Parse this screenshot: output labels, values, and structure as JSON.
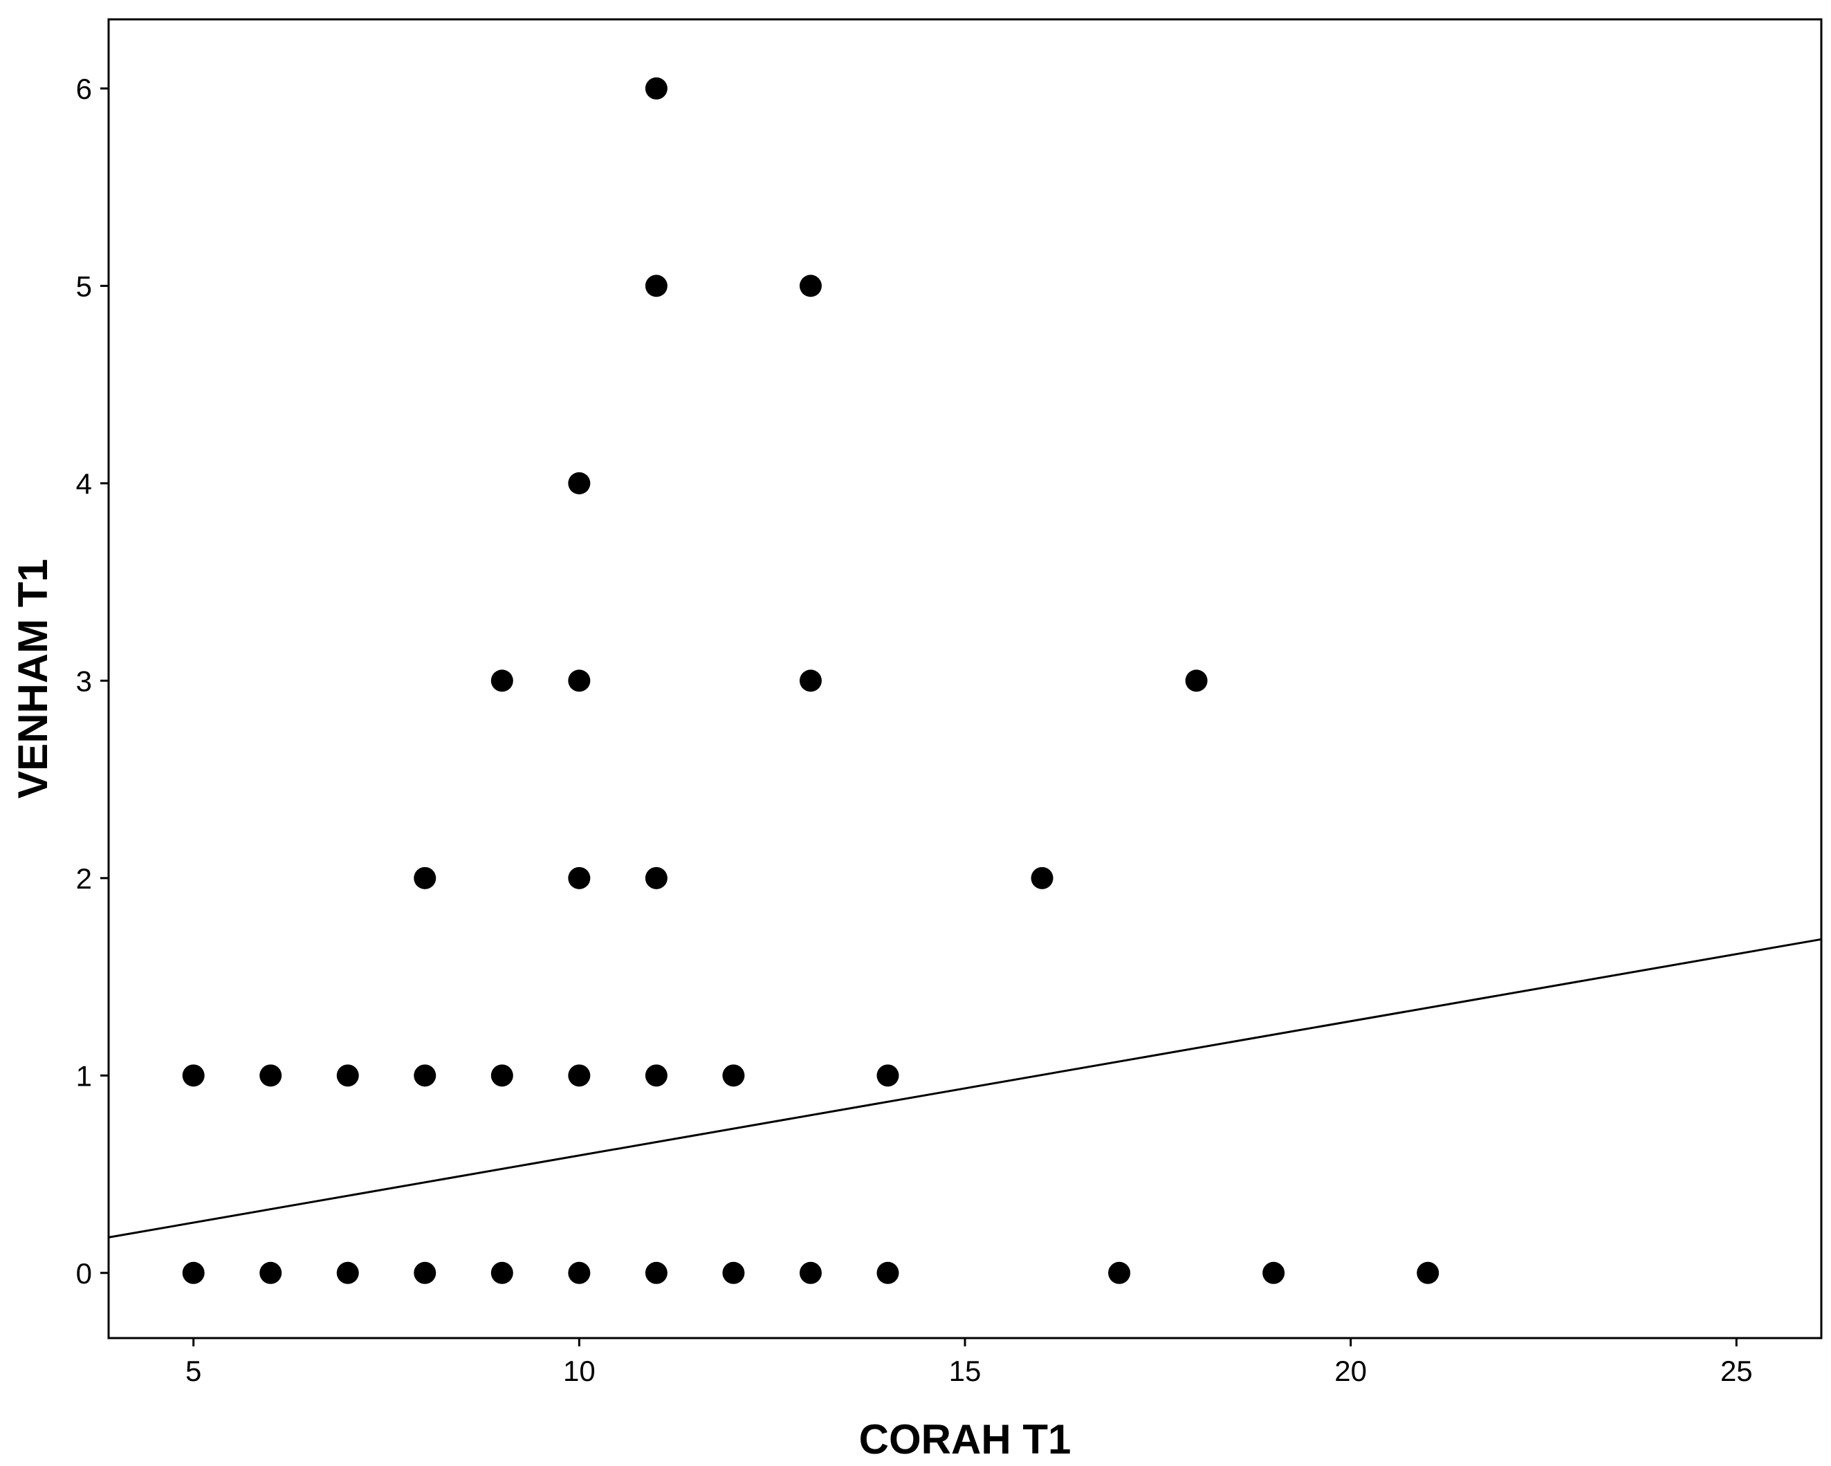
{
  "chart_data": {
    "type": "scatter",
    "title": "",
    "xlabel": "CORAH T1",
    "ylabel": "VENHAM T1",
    "xlim": [
      3.9,
      26.1
    ],
    "ylim": [
      -0.33,
      6.35
    ],
    "x_ticks": [
      5,
      10,
      15,
      20,
      25
    ],
    "y_ticks": [
      0,
      1,
      2,
      3,
      4,
      5,
      6
    ],
    "grid": false,
    "legend": "none",
    "marker_color": "#000000",
    "line_color": "#000000",
    "points": [
      [
        11,
        6
      ],
      [
        11,
        5
      ],
      [
        13,
        5
      ],
      [
        10,
        4
      ],
      [
        9,
        3
      ],
      [
        10,
        3
      ],
      [
        13,
        3
      ],
      [
        18,
        3
      ],
      [
        8,
        2
      ],
      [
        10,
        2
      ],
      [
        11,
        2
      ],
      [
        16,
        2
      ],
      [
        5,
        1
      ],
      [
        6,
        1
      ],
      [
        7,
        1
      ],
      [
        8,
        1
      ],
      [
        9,
        1
      ],
      [
        10,
        1
      ],
      [
        11,
        1
      ],
      [
        12,
        1
      ],
      [
        14,
        1
      ],
      [
        5,
        0
      ],
      [
        6,
        0
      ],
      [
        7,
        0
      ],
      [
        8,
        0
      ],
      [
        9,
        0
      ],
      [
        10,
        0
      ],
      [
        11,
        0
      ],
      [
        12,
        0
      ],
      [
        13,
        0
      ],
      [
        14,
        0
      ],
      [
        17,
        0
      ],
      [
        19,
        0
      ],
      [
        21,
        0
      ]
    ],
    "fit_line": {
      "x": [
        3.9,
        26.1
      ],
      "y": [
        0.18,
        1.69
      ]
    }
  }
}
